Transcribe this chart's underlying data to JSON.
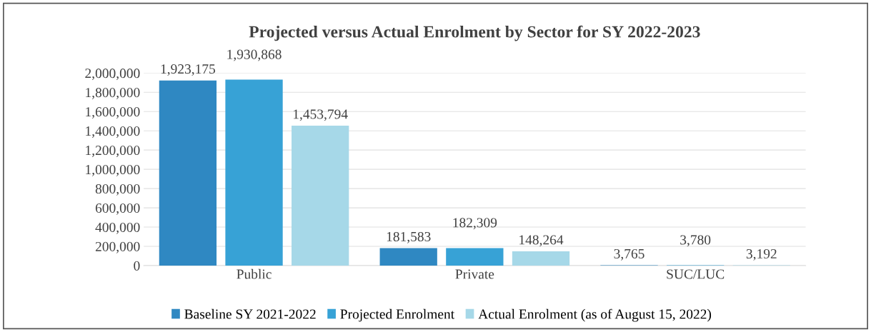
{
  "chart_data": {
    "type": "bar",
    "title": "Projected versus Actual Enrolment by Sector for SY 2022-2023",
    "categories": [
      "Public",
      "Private",
      "SUC/LUC"
    ],
    "series": [
      {
        "name": "Baseline SY 2021-2022",
        "color": "#2f88c2",
        "values": [
          1923175,
          181583,
          3765
        ],
        "value_labels": [
          "1,923,175",
          "181,583",
          "3,765"
        ]
      },
      {
        "name": "Projected Enrolment",
        "color": "#37a2d6",
        "values": [
          1930868,
          182309,
          3780
        ],
        "value_labels": [
          "1,930,868",
          "182,309",
          "3,780"
        ]
      },
      {
        "name": "Actual Enrolment (as of August 15, 2022)",
        "color": "#a6d8e8",
        "values": [
          1453794,
          148264,
          3192
        ],
        "value_labels": [
          "1,453,794",
          "148,264",
          "3,192"
        ]
      }
    ],
    "ylim": [
      0,
      2000000
    ],
    "yticks": [
      {
        "value": 0,
        "label": "0"
      },
      {
        "value": 200000,
        "label": "200,000"
      },
      {
        "value": 400000,
        "label": "400,000"
      },
      {
        "value": 600000,
        "label": "600,000"
      },
      {
        "value": 800000,
        "label": "800,000"
      },
      {
        "value": 1000000,
        "label": "1,000,000"
      },
      {
        "value": 1200000,
        "label": "1,200,000"
      },
      {
        "value": 1400000,
        "label": "1,400,000"
      },
      {
        "value": 1600000,
        "label": "1,600,000"
      },
      {
        "value": 1800000,
        "label": "1,800,000"
      },
      {
        "value": 2000000,
        "label": "2,000,000"
      }
    ],
    "grid": "y",
    "legend": "bottom"
  }
}
